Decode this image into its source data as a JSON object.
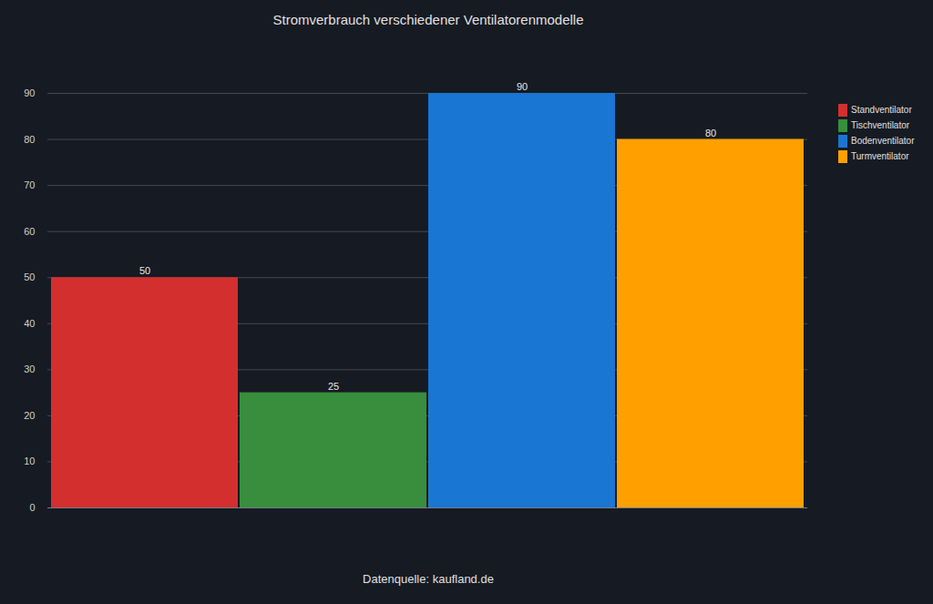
{
  "chart_data": {
    "type": "bar",
    "title": "Stromverbrauch verschiedener Ventilatorenmodelle",
    "caption": "Datenquelle: kaufland.de",
    "categories": [
      "Standventilator",
      "Tischventilator",
      "Bodenventilator",
      "Turmventilator"
    ],
    "values": [
      50,
      25,
      90,
      80
    ],
    "colors": [
      "#d32f2f",
      "#388e3c",
      "#1976d2",
      "#ffa000"
    ],
    "ylim": [
      0,
      90
    ],
    "yticks": [
      0,
      10,
      20,
      30,
      40,
      50,
      60,
      70,
      80,
      90
    ],
    "grid": true,
    "data_labels": true,
    "legend": "top-right",
    "tick_labels": "y"
  }
}
